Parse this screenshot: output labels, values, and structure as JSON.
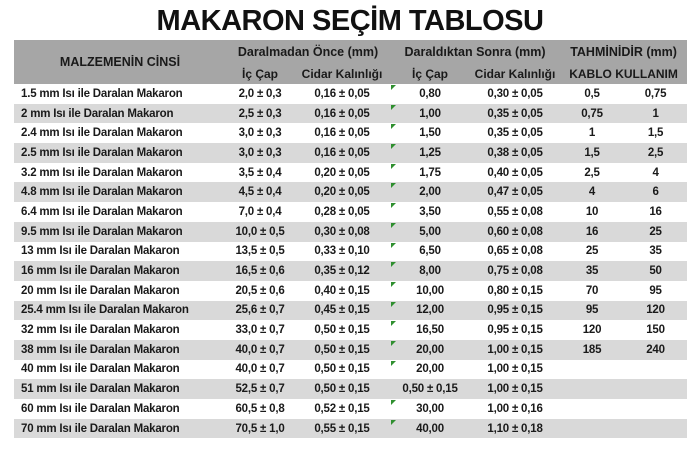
{
  "title": "MAKARON SEÇİM TABLOSU",
  "colors": {
    "header_bg": "#a6a6a6",
    "stripe_bg": "#d9d9d9",
    "flag_green": "#2f8f2f",
    "text": "#1a1a1a"
  },
  "table": {
    "header": {
      "material": "MALZEMENİN CİNSİ",
      "before_group": "Daralmadan Önce (mm)",
      "after_group": "Daraldıktan Sonra (mm)",
      "estimate_group": "TAHMİNİDİR (mm)",
      "inner_diameter": "İç Çap",
      "wall_thickness": "Cidar Kalınlığı",
      "cable_usage": "KABLO KULLANIM"
    },
    "rows": [
      {
        "material": "1.5 mm Isı ile Daralan Makaron",
        "before_ic": "2,0 ± 0,3",
        "before_cidar": "0,16 ± 0,05",
        "after_ic": "0,80",
        "after_cidar": "0,30 ± 0,05",
        "kablo_min": "0,5",
        "kablo_max": "0,75",
        "flag": true
      },
      {
        "material": "2 mm Isı ile Daralan Makaron",
        "before_ic": "2,5 ± 0,3",
        "before_cidar": "0,16 ± 0,05",
        "after_ic": "1,00",
        "after_cidar": "0,35 ± 0,05",
        "kablo_min": "0,75",
        "kablo_max": "1",
        "flag": true
      },
      {
        "material": "2.4 mm Isı ile Daralan Makaron",
        "before_ic": "3,0 ± 0,3",
        "before_cidar": "0,16 ± 0,05",
        "after_ic": "1,50",
        "after_cidar": "0,35 ± 0,05",
        "kablo_min": "1",
        "kablo_max": "1,5",
        "flag": true
      },
      {
        "material": "2.5 mm Isı ile Daralan Makaron",
        "before_ic": "3,0 ± 0,3",
        "before_cidar": "0,16 ± 0,05",
        "after_ic": "1,25",
        "after_cidar": "0,38 ± 0,05",
        "kablo_min": "1,5",
        "kablo_max": "2,5",
        "flag": true
      },
      {
        "material": "3.2 mm Isı ile Daralan Makaron",
        "before_ic": "3,5 ± 0,4",
        "before_cidar": "0,20 ± 0,05",
        "after_ic": "1,75",
        "after_cidar": "0,40 ± 0,05",
        "kablo_min": "2,5",
        "kablo_max": "4",
        "flag": true
      },
      {
        "material": "4.8 mm Isı ile Daralan Makaron",
        "before_ic": "4,5 ± 0,4",
        "before_cidar": "0,20 ± 0,05",
        "after_ic": "2,00",
        "after_cidar": "0,47 ± 0,05",
        "kablo_min": "4",
        "kablo_max": "6",
        "flag": true
      },
      {
        "material": "6.4 mm Isı ile Daralan Makaron",
        "before_ic": "7,0 ± 0,4",
        "before_cidar": "0,28 ± 0,05",
        "after_ic": "3,50",
        "after_cidar": "0,55 ± 0,08",
        "kablo_min": "10",
        "kablo_max": "16",
        "flag": true
      },
      {
        "material": "9.5 mm Isı ile Daralan Makaron",
        "before_ic": "10,0 ± 0,5",
        "before_cidar": "0,30 ± 0,08",
        "after_ic": "5,00",
        "after_cidar": "0,60 ± 0,08",
        "kablo_min": "16",
        "kablo_max": "25",
        "flag": true
      },
      {
        "material": "13 mm Isı ile Daralan Makaron",
        "before_ic": "13,5 ± 0,5",
        "before_cidar": "0,33 ± 0,10",
        "after_ic": "6,50",
        "after_cidar": "0,65 ± 0,08",
        "kablo_min": "25",
        "kablo_max": "35",
        "flag": true
      },
      {
        "material": "16 mm Isı ile Daralan Makaron",
        "before_ic": "16,5 ± 0,6",
        "before_cidar": "0,35 ± 0,12",
        "after_ic": "8,00",
        "after_cidar": "0,75 ± 0,08",
        "kablo_min": "35",
        "kablo_max": "50",
        "flag": true
      },
      {
        "material": "20 mm Isı ile Daralan Makaron",
        "before_ic": "20,5 ± 0,6",
        "before_cidar": "0,40 ± 0,15",
        "after_ic": "10,00",
        "after_cidar": "0,80 ± 0,15",
        "kablo_min": "70",
        "kablo_max": "95",
        "flag": true
      },
      {
        "material": "25.4 mm Isı ile Daralan Makaron",
        "before_ic": "25,6 ± 0,7",
        "before_cidar": "0,45 ± 0,15",
        "after_ic": "12,00",
        "after_cidar": "0,95 ± 0,15",
        "kablo_min": "95",
        "kablo_max": "120",
        "flag": true
      },
      {
        "material": "32 mm Isı ile Daralan Makaron",
        "before_ic": "33,0 ± 0,7",
        "before_cidar": "0,50 ± 0,15",
        "after_ic": "16,50",
        "after_cidar": "0,95 ± 0,15",
        "kablo_min": "120",
        "kablo_max": "150",
        "flag": true
      },
      {
        "material": "38 mm Isı ile Daralan Makaron",
        "before_ic": "40,0 ± 0,7",
        "before_cidar": "0,50 ± 0,15",
        "after_ic": "20,00",
        "after_cidar": "1,00 ± 0,15",
        "kablo_min": "185",
        "kablo_max": "240",
        "flag": true
      },
      {
        "material": "40 mm Isı ile Daralan Makaron",
        "before_ic": "40,0 ± 0,7",
        "before_cidar": "0,50 ± 0,15",
        "after_ic": "20,00",
        "after_cidar": "1,00 ± 0,15",
        "kablo_min": "",
        "kablo_max": "",
        "flag": true
      },
      {
        "material": "51 mm Isı ile Daralan Makaron",
        "before_ic": "52,5 ± 0,7",
        "before_cidar": "0,50 ± 0,15",
        "after_ic": "0,50 ± 0,15",
        "after_cidar": "1,00 ± 0,15",
        "kablo_min": "",
        "kablo_max": "",
        "flag": false
      },
      {
        "material": "60 mm Isı ile Daralan Makaron",
        "before_ic": "60,5 ± 0,8",
        "before_cidar": "0,52 ± 0,15",
        "after_ic": "30,00",
        "after_cidar": "1,00 ± 0,16",
        "kablo_min": "",
        "kablo_max": "",
        "flag": true
      },
      {
        "material": "70 mm Isı ile Daralan Makaron",
        "before_ic": "70,5 ± 1,0",
        "before_cidar": "0,55 ± 0,15",
        "after_ic": "40,00",
        "after_cidar": "1,10 ± 0,18",
        "kablo_min": "",
        "kablo_max": "",
        "flag": true
      }
    ]
  }
}
